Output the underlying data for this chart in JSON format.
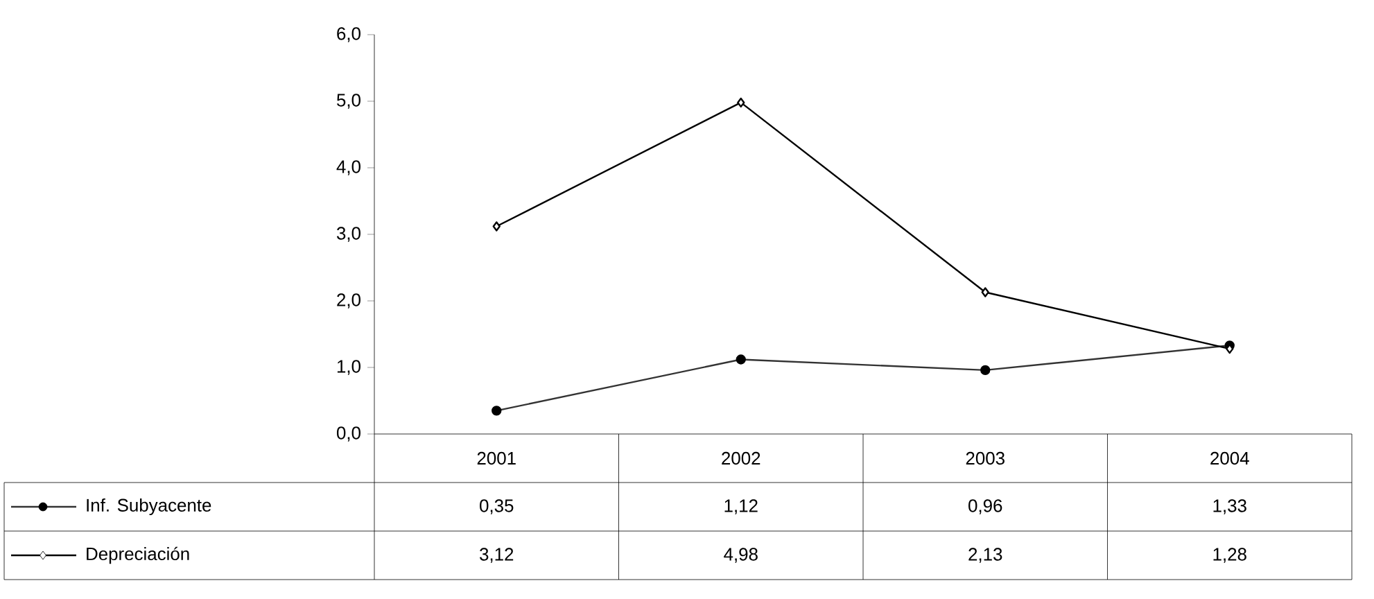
{
  "chart_data": {
    "type": "line",
    "categories": [
      "2001",
      "2002",
      "2003",
      "2004"
    ],
    "series": [
      {
        "name": "Inf. Subyacente",
        "color": "#333333",
        "marker": "circle",
        "values": [
          0.35,
          1.12,
          0.96,
          1.33
        ],
        "value_labels": [
          "0,35",
          "1,12",
          "0,96",
          "1,33"
        ]
      },
      {
        "name": "Depreciación",
        "color": "#000000",
        "marker": "diamond",
        "values": [
          3.12,
          4.98,
          2.13,
          1.28
        ],
        "value_labels": [
          "3,12",
          "4,98",
          "2,13",
          "1,28"
        ]
      }
    ],
    "ylim": [
      0,
      6
    ],
    "yticks": [
      {
        "value": 0,
        "label": "0,0"
      },
      {
        "value": 1,
        "label": "1,0"
      },
      {
        "value": 2,
        "label": "2,0"
      },
      {
        "value": 3,
        "label": "3,0"
      },
      {
        "value": 4,
        "label": "4,0"
      },
      {
        "value": 5,
        "label": "5,0"
      },
      {
        "value": 6,
        "label": "6,0"
      }
    ],
    "legend": "bottom left",
    "line_style": "solid",
    "grid": false
  }
}
